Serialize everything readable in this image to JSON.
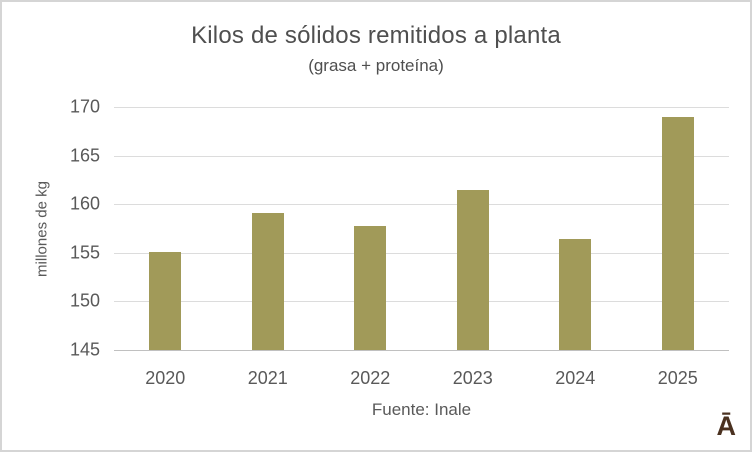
{
  "frame": {
    "background": "#ffffff",
    "border_color": "#d5d5d5"
  },
  "chart_data": {
    "type": "bar",
    "title": "Kilos de sólidos remitidos a planta",
    "subtitle": "(grasa + proteína)",
    "categories": [
      "2020",
      "2021",
      "2022",
      "2023",
      "2024",
      "2025"
    ],
    "values": [
      155.1,
      159.1,
      157.8,
      161.5,
      156.4,
      169.0
    ],
    "xlabel": "",
    "ylabel": "millones de kg",
    "ylim": [
      145,
      170
    ],
    "yticks": [
      145,
      150,
      155,
      160,
      165,
      170
    ],
    "grid": "horizontal",
    "legend": "none",
    "bar_color": "#a19a59"
  },
  "footer": {
    "source": "Fuente: Inale",
    "logo": "Ā",
    "logo_color": "#4a3120"
  },
  "colors": {
    "gridline": "#dcdcdc",
    "axis_line": "#c0c0c0",
    "tick_text": "#595959",
    "title_text": "#4f4f4f"
  }
}
